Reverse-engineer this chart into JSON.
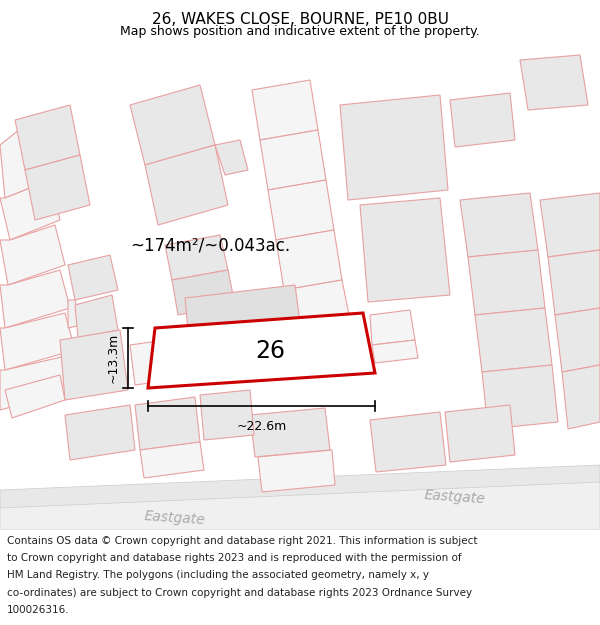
{
  "title": "26, WAKES CLOSE, BOURNE, PE10 0BU",
  "subtitle": "Map shows position and indicative extent of the property.",
  "footer_lines": [
    "Contains OS data © Crown copyright and database right 2021. This information is subject",
    "to Crown copyright and database rights 2023 and is reproduced with the permission of",
    "HM Land Registry. The polygons (including the associated geometry, namely x, y",
    "co-ordinates) are subject to Crown copyright and database rights 2023 Ordnance Survey",
    "100026316."
  ],
  "area_label": "~174m²/~0.043ac.",
  "width_label": "~22.6m",
  "height_label": "~13.3m",
  "plot_number": "26",
  "map_bg": "#ffffff",
  "building_fill": "#e8e8e8",
  "building_stroke": "#e8a0a0",
  "road_fill": "#efefef",
  "road_stroke": "#d0d0d0",
  "highlight_stroke": "#cc0000",
  "highlight_fill": "#ffffff",
  "dimension_color": "#000000",
  "text_color": "#000000",
  "road_text_color": "#aaaaaa",
  "title_fontsize": 11,
  "subtitle_fontsize": 9,
  "footer_fontsize": 7.5,
  "map_xlim": [
    0,
    600
  ],
  "map_ylim": [
    0,
    480
  ]
}
